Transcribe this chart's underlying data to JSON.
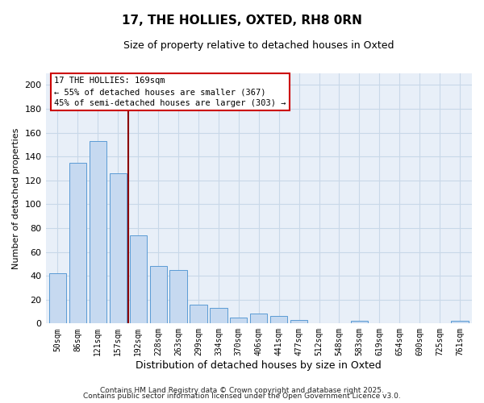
{
  "title": "17, THE HOLLIES, OXTED, RH8 0RN",
  "subtitle": "Size of property relative to detached houses in Oxted",
  "xlabel": "Distribution of detached houses by size in Oxted",
  "ylabel": "Number of detached properties",
  "bar_color": "#c6d9f0",
  "bar_edge_color": "#5b9bd5",
  "categories": [
    "50sqm",
    "86sqm",
    "121sqm",
    "157sqm",
    "192sqm",
    "228sqm",
    "263sqm",
    "299sqm",
    "334sqm",
    "370sqm",
    "406sqm",
    "441sqm",
    "477sqm",
    "512sqm",
    "548sqm",
    "583sqm",
    "619sqm",
    "654sqm",
    "690sqm",
    "725sqm",
    "761sqm"
  ],
  "values": [
    42,
    135,
    153,
    126,
    74,
    48,
    45,
    16,
    13,
    5,
    8,
    6,
    3,
    0,
    0,
    2,
    0,
    0,
    0,
    0,
    2
  ],
  "ylim": [
    0,
    210
  ],
  "yticks": [
    0,
    20,
    40,
    60,
    80,
    100,
    120,
    140,
    160,
    180,
    200
  ],
  "vline_x": 3.5,
  "vline_color": "#8b0000",
  "annotation_title": "17 THE HOLLIES: 169sqm",
  "annotation_line1": "← 55% of detached houses are smaller (367)",
  "annotation_line2": "45% of semi-detached houses are larger (303) →",
  "footer1": "Contains HM Land Registry data © Crown copyright and database right 2025.",
  "footer2": "Contains public sector information licensed under the Open Government Licence v3.0.",
  "grid_color": "#c8d8e8",
  "background_color": "#e8eff8"
}
